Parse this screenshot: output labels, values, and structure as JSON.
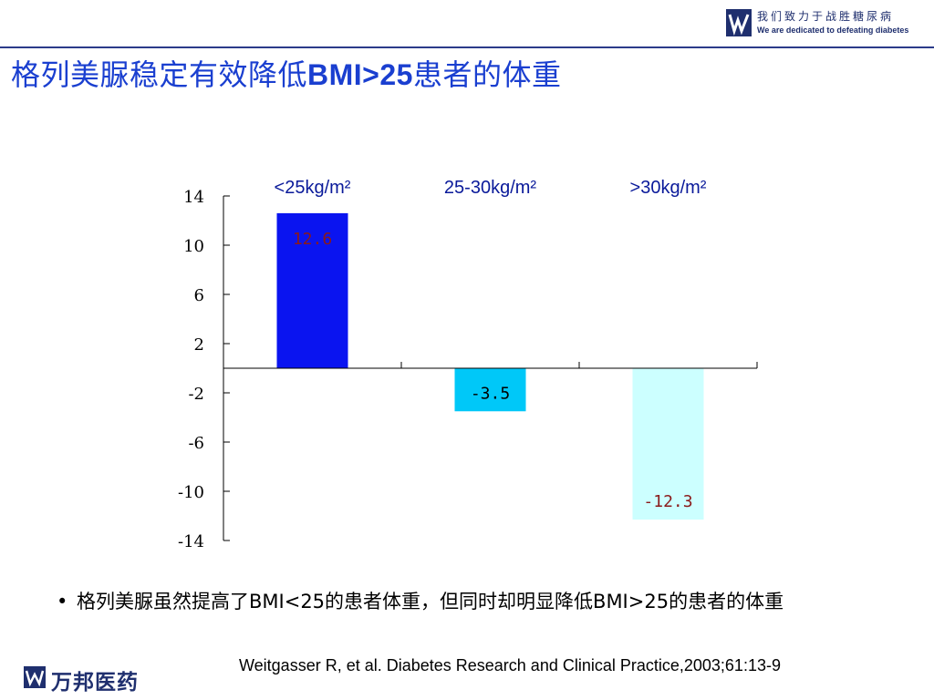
{
  "header": {
    "tagline_cn": "我们致力于战胜糖尿病",
    "tagline_en": "We are dedicated to defeating diabetes"
  },
  "page_title": {
    "prefix": "格列美脲稳定有效降低",
    "latin": "BMI>25",
    "suffix": "患者的体重"
  },
  "chart_data": {
    "type": "bar",
    "categories": [
      "<25kg/m²",
      "25-30kg/m²",
      ">30kg/m²"
    ],
    "values": [
      12.6,
      -3.5,
      -12.3
    ],
    "value_labels": [
      "12.6",
      "-3.5",
      "-12.3"
    ],
    "bar_colors": [
      "#0a14f0",
      "#00c8f8",
      "#ccffff"
    ],
    "label_colors": [
      "#8a1a1a",
      "#000000",
      "#8a1a1a"
    ],
    "yticks": [
      14,
      10,
      6,
      2,
      -2,
      -6,
      -10,
      -14
    ],
    "ylim": [
      -14,
      14
    ],
    "title": "",
    "xlabel": "",
    "ylabel": "",
    "grid": false,
    "legend": false
  },
  "bullet": {
    "dot": "•",
    "text": "格列美脲虽然提高了BMI<25的患者体重，但同时却明显降低BMI>25的患者的体重"
  },
  "citation": "Weitgasser R, et al. Diabetes Research and Clinical Practice,2003;61:13-9",
  "footer": {
    "company": "万邦医药",
    "brand_color": "#1f2f6e"
  }
}
